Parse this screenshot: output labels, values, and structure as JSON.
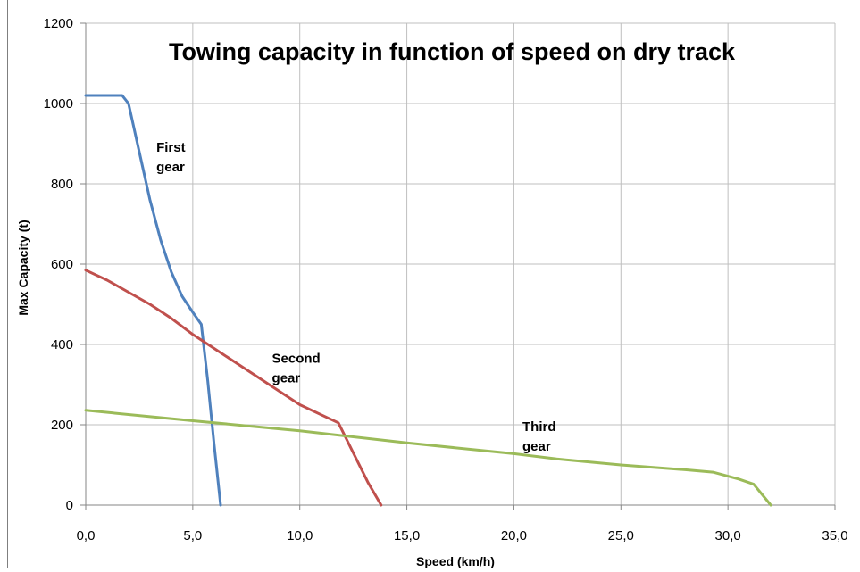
{
  "chart_data": {
    "type": "line",
    "title": "Towing capacity in function of speed on dry track",
    "xlabel": "Speed (km/h)",
    "ylabel": "Max Capacity (t)",
    "xlim": [
      0,
      35
    ],
    "ylim": [
      0,
      1200
    ],
    "x_ticks": [
      "0,0",
      "5,0",
      "10,0",
      "15,0",
      "20,0",
      "25,0",
      "30,0",
      "35,0"
    ],
    "y_ticks": [
      "0",
      "200",
      "400",
      "600",
      "800",
      "1000",
      "1200"
    ],
    "grid": true,
    "legend": "none",
    "series": [
      {
        "color": "#4f81bd",
        "x": [
          0.0,
          1.7,
          2.0,
          2.5,
          3.0,
          3.5,
          4.0,
          4.5,
          5.0,
          5.4,
          5.7,
          6.0,
          6.3
        ],
        "y": [
          1020,
          1020,
          1000,
          880,
          760,
          660,
          580,
          520,
          480,
          450,
          310,
          150,
          0
        ]
      },
      {
        "color": "#c0504d",
        "x": [
          0.0,
          1.0,
          2.0,
          3.0,
          4.0,
          5.0,
          6.0,
          7.0,
          8.0,
          9.0,
          10.0,
          11.0,
          11.8,
          12.5,
          13.2,
          13.8
        ],
        "y": [
          585,
          560,
          530,
          500,
          465,
          425,
          390,
          355,
          320,
          285,
          250,
          225,
          205,
          130,
          55,
          0
        ]
      },
      {
        "color": "#9bbb59",
        "x": [
          0.0,
          5.0,
          10.0,
          15.0,
          20.0,
          22.0,
          25.0,
          28.0,
          29.3,
          30.5,
          31.2,
          32.0
        ],
        "y": [
          236,
          210,
          185,
          155,
          128,
          115,
          100,
          88,
          82,
          65,
          52,
          0
        ]
      }
    ],
    "annotations": [
      {
        "lines": [
          "First",
          "gear"
        ],
        "x": 3.3,
        "y": 880
      },
      {
        "lines": [
          "Second",
          "gear"
        ],
        "x": 8.7,
        "y": 355
      },
      {
        "lines": [
          "Third",
          "gear"
        ],
        "x": 20.4,
        "y": 185
      }
    ]
  }
}
